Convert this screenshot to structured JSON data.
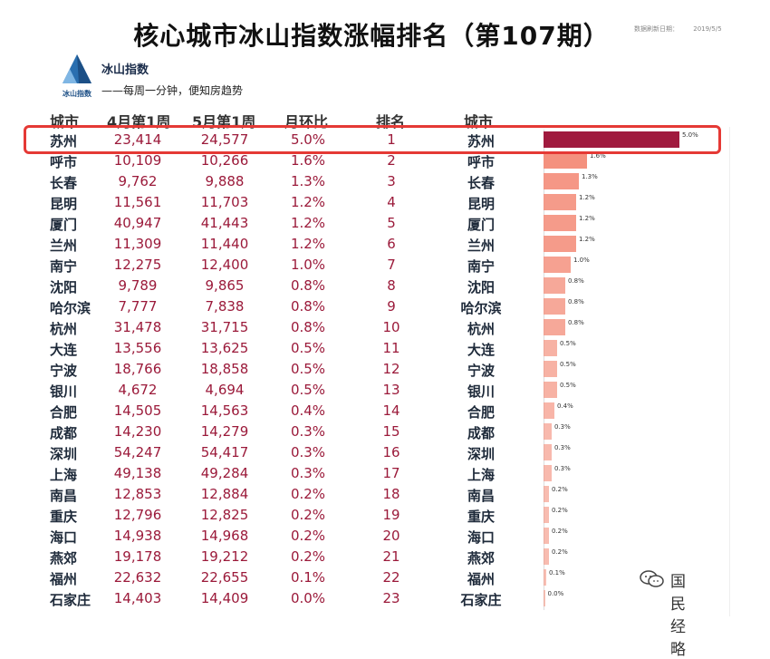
{
  "title": "核心城市冰山指数涨幅排名（第107期）",
  "update": {
    "label": "数据刷新日期：",
    "date": "2019/5/5"
  },
  "brand": {
    "logo_text": "冰山指数",
    "name": "冰山指数",
    "tagline": "——每周一分钟，便知房趋势"
  },
  "table": {
    "headers": [
      "城市",
      "4月第1周",
      "5月第1周",
      "月环比",
      "排名",
      "城市"
    ]
  },
  "chart_data": {
    "type": "bar",
    "orientation": "horizontal",
    "title": "核心城市冰山指数涨幅排名（第107期）",
    "value_max": 5.0,
    "rows": [
      {
        "city": "苏州",
        "apr": "23,414",
        "may": "24,577",
        "mom": "5.0%",
        "rank": "1",
        "value": 5.0
      },
      {
        "city": "呼市",
        "apr": "10,109",
        "may": "10,266",
        "mom": "1.6%",
        "rank": "2",
        "value": 1.6
      },
      {
        "city": "长春",
        "apr": "9,762",
        "may": "9,888",
        "mom": "1.3%",
        "rank": "3",
        "value": 1.3
      },
      {
        "city": "昆明",
        "apr": "11,561",
        "may": "11,703",
        "mom": "1.2%",
        "rank": "4",
        "value": 1.2
      },
      {
        "city": "厦门",
        "apr": "40,947",
        "may": "41,443",
        "mom": "1.2%",
        "rank": "5",
        "value": 1.2
      },
      {
        "city": "兰州",
        "apr": "11,309",
        "may": "11,440",
        "mom": "1.2%",
        "rank": "6",
        "value": 1.2
      },
      {
        "city": "南宁",
        "apr": "12,275",
        "may": "12,400",
        "mom": "1.0%",
        "rank": "7",
        "value": 1.0
      },
      {
        "city": "沈阳",
        "apr": "9,789",
        "may": "9,865",
        "mom": "0.8%",
        "rank": "8",
        "value": 0.8
      },
      {
        "city": "哈尔滨",
        "apr": "7,777",
        "may": "7,838",
        "mom": "0.8%",
        "rank": "9",
        "value": 0.8
      },
      {
        "city": "杭州",
        "apr": "31,478",
        "may": "31,715",
        "mom": "0.8%",
        "rank": "10",
        "value": 0.8
      },
      {
        "city": "大连",
        "apr": "13,556",
        "may": "13,625",
        "mom": "0.5%",
        "rank": "11",
        "value": 0.5
      },
      {
        "city": "宁波",
        "apr": "18,766",
        "may": "18,858",
        "mom": "0.5%",
        "rank": "12",
        "value": 0.5
      },
      {
        "city": "银川",
        "apr": "4,672",
        "may": "4,694",
        "mom": "0.5%",
        "rank": "13",
        "value": 0.5
      },
      {
        "city": "合肥",
        "apr": "14,505",
        "may": "14,563",
        "mom": "0.4%",
        "rank": "14",
        "value": 0.4
      },
      {
        "city": "成都",
        "apr": "14,230",
        "may": "14,279",
        "mom": "0.3%",
        "rank": "15",
        "value": 0.3
      },
      {
        "city": "深圳",
        "apr": "54,247",
        "may": "54,417",
        "mom": "0.3%",
        "rank": "16",
        "value": 0.3
      },
      {
        "city": "上海",
        "apr": "49,138",
        "may": "49,284",
        "mom": "0.3%",
        "rank": "17",
        "value": 0.3
      },
      {
        "city": "南昌",
        "apr": "12,853",
        "may": "12,884",
        "mom": "0.2%",
        "rank": "18",
        "value": 0.2
      },
      {
        "city": "重庆",
        "apr": "12,796",
        "may": "12,825",
        "mom": "0.2%",
        "rank": "19",
        "value": 0.2
      },
      {
        "city": "海口",
        "apr": "14,938",
        "may": "14,968",
        "mom": "0.2%",
        "rank": "20",
        "value": 0.2
      },
      {
        "city": "燕郊",
        "apr": "19,178",
        "may": "19,212",
        "mom": "0.2%",
        "rank": "21",
        "value": 0.2
      },
      {
        "city": "福州",
        "apr": "22,632",
        "may": "22,655",
        "mom": "0.1%",
        "rank": "22",
        "value": 0.1
      },
      {
        "city": "石家庄",
        "apr": "14,403",
        "may": "14,409",
        "mom": "0.0%",
        "rank": "23",
        "value": 0.0
      }
    ]
  },
  "colors": {
    "top_bar": "#a01a3e",
    "bar": "#f4917e",
    "highlight": "#e53935"
  },
  "watermark": {
    "text": "国民经略"
  }
}
